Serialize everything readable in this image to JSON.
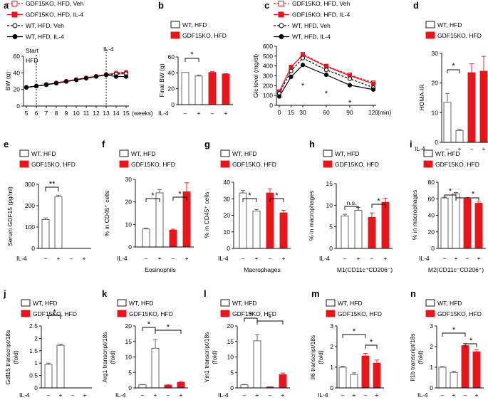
{
  "colors": {
    "red": "#e8161b",
    "black": "#000000",
    "white": "#ffffff",
    "gray": "#555555"
  },
  "ylabels": {
    "a": "BW (g)",
    "b": "Final BW (g)",
    "c": "Glc level (mg/dl)",
    "d": "HOMA-IR",
    "e": "Serum GDF15 (pg/ml)",
    "f": "% in CD45⁺ cells",
    "g": "% in CD45⁺ cells",
    "h": "% in macrophages",
    "i": "% in macrophages",
    "j": "Gdf15 transcript/18s",
    "k": "Arg1 transcript/18s",
    "l": "Ym1 transcript/18s",
    "m": "Il6 transcript/18s",
    "n": "Il1b transcript/18s",
    "fold": "(fold)"
  },
  "xlabels": {
    "a": "(weeks)",
    "c": "(min)",
    "f": "Eosinophils",
    "g": "Macrophages",
    "h": "M1(CD11c⁺CD206⁻)",
    "i": "M2(CD11c⁻CD206⁺)"
  },
  "legend2": [
    "WT, HFD",
    "GDF15KO, HFD"
  ],
  "legend4": [
    "GDF15KO, HFD, Veh",
    "GDF15KO, HFD, IL-4",
    "WT, HFD, Veh",
    "WT, HFD, IL-4"
  ],
  "il4": {
    "label": "IL-4",
    "signs": [
      "–",
      "+",
      "–",
      "+"
    ]
  },
  "annotations": {
    "start": "Start",
    "hfd": "HFD",
    "il4": "IL-4",
    "ns": "n.s.",
    "star": "*",
    "dstar": "**"
  },
  "chart_data": [
    {
      "panel": "a",
      "type": "line",
      "ylabel": "BW (g)",
      "xlabel": "(weeks)",
      "x": [
        5,
        6,
        7,
        8,
        9,
        10,
        11,
        12,
        13,
        14,
        15
      ],
      "xlim": [
        5,
        15
      ],
      "ylim": [
        0,
        60
      ],
      "yticks": [
        0,
        20,
        40,
        60
      ],
      "series": [
        {
          "name": "GDF15KO, HFD, Veh",
          "values": [
            22.5,
            24,
            26,
            28,
            30,
            32,
            34,
            36,
            38,
            40,
            41
          ]
        },
        {
          "name": "GDF15KO, HFD, IL-4",
          "values": [
            22.5,
            24,
            26,
            28,
            30,
            32,
            34,
            36,
            38,
            39.5,
            40
          ]
        },
        {
          "name": "WT, HFD, Veh",
          "values": [
            22.5,
            24,
            26,
            27.5,
            29.5,
            31.5,
            33.5,
            35.5,
            37.5,
            38.5,
            39
          ]
        },
        {
          "name": "WT, HFD, IL-4",
          "values": [
            22.5,
            24,
            25.5,
            27.5,
            29.5,
            31.5,
            33.5,
            35.5,
            37.5,
            35.5,
            35.5
          ]
        }
      ]
    },
    {
      "panel": "b",
      "type": "bar",
      "ylabel": "Final BW (g)",
      "ylim": [
        0,
        60
      ],
      "yticks": [
        0,
        20,
        40,
        60
      ],
      "series": [
        {
          "name": "WT, HFD",
          "values": [
            40.5,
            36
          ]
        },
        {
          "name": "GDF15KO, HFD",
          "values": [
            40.5,
            38.5
          ]
        }
      ]
    },
    {
      "panel": "c",
      "type": "line",
      "ylabel": "Glc level (mg/dl)",
      "xlabel": "(min)",
      "x": [
        0,
        15,
        30,
        60,
        90,
        120
      ],
      "xlim": [
        0,
        120
      ],
      "ylim": [
        0,
        600
      ],
      "yticks": [
        0,
        100,
        200,
        300,
        400,
        500,
        600
      ],
      "series": [
        {
          "name": "GDF15KO, HFD, Veh",
          "values": [
            140,
            380,
            520,
            400,
            310,
            230
          ]
        },
        {
          "name": "GDF15KO, HFD, IL-4",
          "values": [
            140,
            390,
            510,
            395,
            300,
            220
          ]
        },
        {
          "name": "WT, HFD, Veh",
          "values": [
            120,
            350,
            480,
            360,
            270,
            180
          ]
        },
        {
          "name": "WT, HFD, IL-4",
          "values": [
            90,
            290,
            410,
            310,
            205,
            160
          ]
        }
      ]
    },
    {
      "panel": "d",
      "type": "bar",
      "ylabel": "HOMA-IR",
      "ylim": [
        0,
        30
      ],
      "yticks": [
        0,
        10,
        20,
        30
      ],
      "series": [
        {
          "name": "WT, HFD",
          "values": [
            13.5,
            4
          ]
        },
        {
          "name": "GDF15KO, HFD",
          "values": [
            23.5,
            24
          ]
        }
      ]
    },
    {
      "panel": "e",
      "type": "bar",
      "ylabel": "Serum GDF15 (pg/ml)",
      "ylim": [
        0,
        300
      ],
      "yticks": [
        0,
        100,
        200,
        300
      ],
      "series": [
        {
          "name": "WT, HFD",
          "values": [
            135,
            242
          ]
        },
        {
          "name": "GDF15KO, HFD",
          "values": [
            0,
            0
          ]
        }
      ]
    },
    {
      "panel": "f",
      "type": "bar",
      "ylabel": "% in CD45⁺ cells",
      "xlabel": "Eosinophils",
      "ylim": [
        0,
        30
      ],
      "yticks": [
        0,
        10,
        20,
        30
      ],
      "series": [
        {
          "name": "WT, HFD",
          "values": [
            8,
            24
          ]
        },
        {
          "name": "GDF15KO, HFD",
          "values": [
            7.5,
            24.5
          ]
        }
      ]
    },
    {
      "panel": "g",
      "type": "bar",
      "ylabel": "% in CD45⁺ cells",
      "xlabel": "Macrophages",
      "ylim": [
        0,
        40
      ],
      "yticks": [
        0,
        10,
        20,
        30,
        40
      ],
      "series": [
        {
          "name": "WT, HFD",
          "values": [
            33.5,
            22.5
          ]
        },
        {
          "name": "GDF15KO, HFD",
          "values": [
            33.5,
            21.5
          ]
        }
      ]
    },
    {
      "panel": "h",
      "type": "bar",
      "ylabel": "% in macrophages",
      "xlabel": "M1(CD11c⁺CD206⁻)",
      "ylim": [
        0,
        15
      ],
      "yticks": [
        0,
        5,
        10,
        15
      ],
      "series": [
        {
          "name": "WT, HFD",
          "values": [
            7.5,
            8.8
          ]
        },
        {
          "name": "GDF15KO, HFD",
          "values": [
            7.2,
            10.7
          ]
        }
      ]
    },
    {
      "panel": "i",
      "type": "bar",
      "ylabel": "% in macrophages",
      "xlabel": "M2(CD11c⁻CD206⁺)",
      "ylim": [
        0,
        80
      ],
      "yticks": [
        0,
        20,
        40,
        60,
        80
      ],
      "series": [
        {
          "name": "WT, HFD",
          "values": [
            61,
            66
          ]
        },
        {
          "name": "GDF15KO, HFD",
          "values": [
            60,
            54.5
          ]
        }
      ]
    },
    {
      "panel": "j",
      "type": "bar",
      "ylabel": "Gdf15 transcript/18s (fold)",
      "ylim": [
        0,
        2.5
      ],
      "yticks": [
        0,
        0.5,
        1.0,
        1.5,
        2.0,
        2.5
      ],
      "series": [
        {
          "name": "WT, HFD",
          "values": [
            0.95,
            1.72
          ]
        },
        {
          "name": "GDF15KO, HFD",
          "values": [
            0,
            0
          ]
        }
      ]
    },
    {
      "panel": "k",
      "type": "bar",
      "ylabel": "Arg1 transcript/18s (fold)",
      "ylim": [
        0,
        20
      ],
      "yticks": [
        0,
        5,
        10,
        15,
        20
      ],
      "series": [
        {
          "name": "WT, HFD",
          "values": [
            1,
            12.8
          ]
        },
        {
          "name": "GDF15KO, HFD",
          "values": [
            0.9,
            1.8
          ]
        }
      ]
    },
    {
      "panel": "l",
      "type": "bar",
      "ylabel": "Ym1 transcript/18s (fold)",
      "ylim": [
        0,
        20
      ],
      "yticks": [
        0,
        5,
        10,
        15,
        20
      ],
      "series": [
        {
          "name": "WT, HFD",
          "values": [
            1,
            15.2
          ]
        },
        {
          "name": "GDF15KO, HFD",
          "values": [
            0.3,
            4.3
          ]
        }
      ]
    },
    {
      "panel": "m",
      "type": "bar",
      "ylabel": "Il6 transcript/18s (fold)",
      "ylim": [
        0,
        3
      ],
      "yticks": [
        0,
        1,
        2,
        3
      ],
      "series": [
        {
          "name": "WT, HFD",
          "values": [
            1,
            0.65
          ]
        },
        {
          "name": "GDF15KO, HFD",
          "values": [
            1.55,
            1.2
          ]
        }
      ]
    },
    {
      "panel": "n",
      "type": "bar",
      "ylabel": "Il1b transcript/18s (fold)",
      "ylim": [
        0,
        3
      ],
      "yticks": [
        0,
        1,
        2,
        3
      ],
      "series": [
        {
          "name": "WT, HFD",
          "values": [
            1,
            0.75
          ]
        },
        {
          "name": "GDF15KO, HFD",
          "values": [
            2.05,
            1.75
          ]
        }
      ]
    }
  ]
}
